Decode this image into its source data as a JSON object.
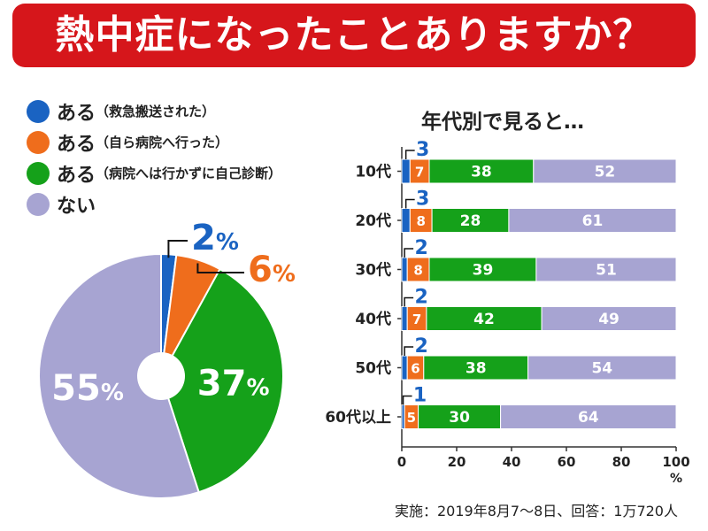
{
  "title": "熱中症になったことありますか？",
  "footnote": "実施：2019年8月7～8日、回答：1万720人",
  "colors": {
    "blue": "#1a63c2",
    "orange": "#ef6d1c",
    "green": "#15a11a",
    "gray": "#a7a4d2",
    "red": "#d6161b"
  },
  "legend": [
    {
      "main": "ある",
      "note": "（救急搬送された）",
      "color": "#1a63c2"
    },
    {
      "main": "ある",
      "note": "（自ら病院へ行った）",
      "color": "#ef6d1c"
    },
    {
      "main": "ある",
      "note": "（病院へは行かずに自己診断）",
      "color": "#15a11a"
    },
    {
      "main": "ない",
      "note": "",
      "color": "#a7a4d2"
    }
  ],
  "chart_data": [
    {
      "type": "pie",
      "categories": [
        "ある（救急搬送された）",
        "ある（自ら病院へ行った）",
        "ある（病院へは行かずに自己診断）",
        "ない"
      ],
      "values": [
        2,
        6,
        37,
        55
      ],
      "labels": [
        "2",
        "6",
        "37",
        "55"
      ],
      "unit": "%",
      "colors": [
        "#1a63c2",
        "#ef6d1c",
        "#15a11a",
        "#a7a4d2"
      ]
    },
    {
      "type": "bar",
      "stacked": true,
      "orientation": "horizontal",
      "title": "年代別で見ると…",
      "categories": [
        "10代",
        "20代",
        "30代",
        "40代",
        "50代",
        "60代以上"
      ],
      "series": [
        {
          "name": "ある（救急搬送された）",
          "color": "#1a63c2",
          "values": [
            3,
            3,
            2,
            2,
            2,
            1
          ]
        },
        {
          "name": "ある（自ら病院へ行った）",
          "color": "#ef6d1c",
          "values": [
            7,
            8,
            8,
            7,
            6,
            5
          ]
        },
        {
          "name": "ある（病院へは行かずに自己診断）",
          "color": "#15a11a",
          "values": [
            38,
            28,
            39,
            42,
            38,
            30
          ]
        },
        {
          "name": "ない",
          "color": "#a7a4d2",
          "values": [
            52,
            61,
            51,
            49,
            54,
            64
          ]
        }
      ],
      "xlim": [
        0,
        100
      ],
      "xticks": [
        "0",
        "20",
        "40",
        "60",
        "80",
        "100"
      ],
      "xunit": "%"
    }
  ]
}
